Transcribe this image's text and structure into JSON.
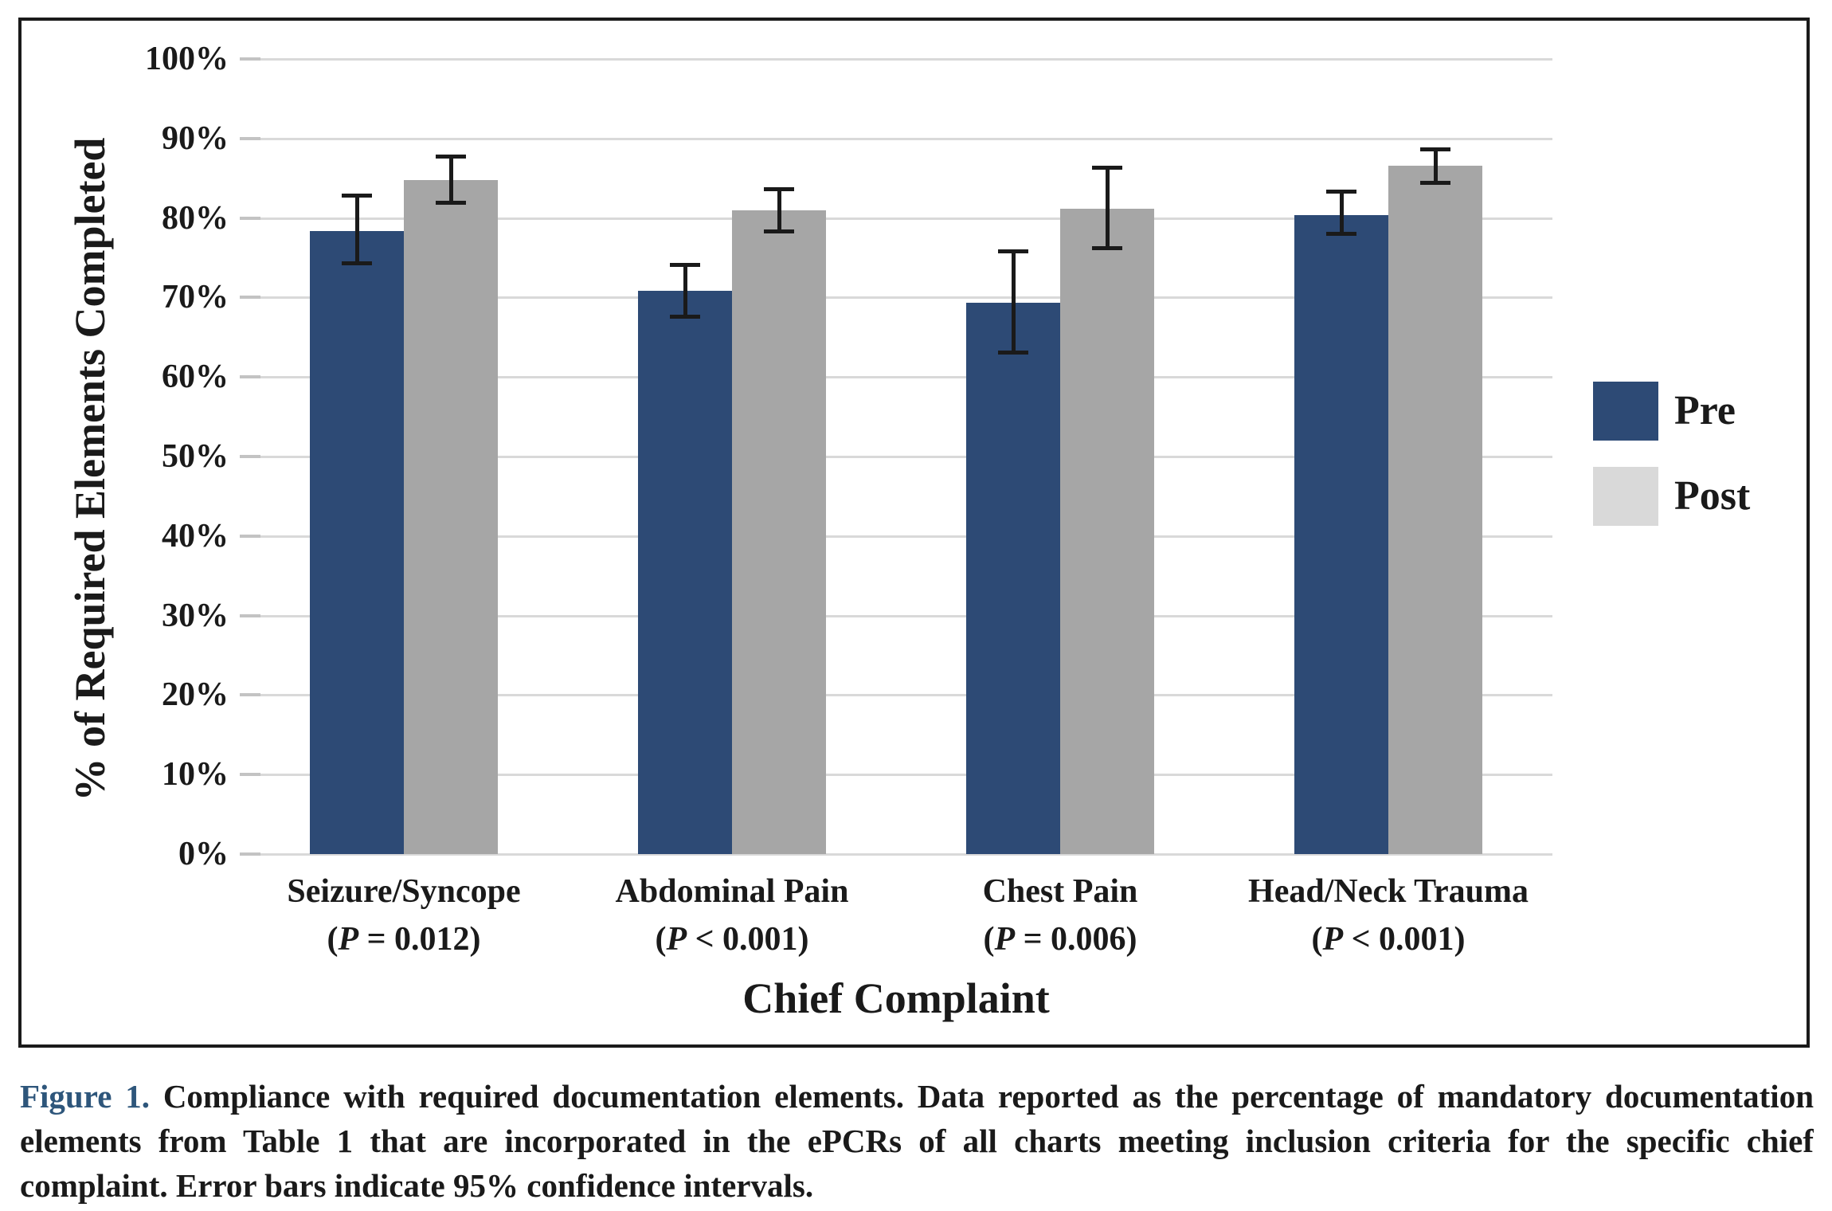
{
  "figure": {
    "background": "#ffffff",
    "border_color": "#1a1a1a"
  },
  "chart": {
    "y_axis_title": "% of Required Elements Completed",
    "x_axis_title": "Chief Complaint",
    "y_ticks": [
      {
        "label": "100%",
        "value": 100
      },
      {
        "label": "90%",
        "value": 90
      },
      {
        "label": "80%",
        "value": 80
      },
      {
        "label": "70%",
        "value": 70
      },
      {
        "label": "60%",
        "value": 60
      },
      {
        "label": "50%",
        "value": 50
      },
      {
        "label": "40%",
        "value": 40
      },
      {
        "label": "30%",
        "value": 30
      },
      {
        "label": "20%",
        "value": 20
      },
      {
        "label": "10%",
        "value": 10
      },
      {
        "label": "0%",
        "value": 0
      }
    ],
    "legend": [
      {
        "label": "Pre",
        "color": "#2d4a75"
      },
      {
        "label": "Post",
        "color": "#d9d9d9"
      }
    ],
    "colors": {
      "pre_bar": "#2d4a75",
      "post_bar": "#a6a6a6",
      "gridline": "#d9d9d9",
      "error_bar": "#1a1a1a"
    }
  },
  "chart_data": {
    "type": "bar",
    "categories": [
      "Seizure/Syncope",
      "Abdominal Pain",
      "Chest Pain",
      "Head/Neck Trauma"
    ],
    "p_labels": [
      "(P = 0.012)",
      "(P < 0.001)",
      "(P = 0.006)",
      "(P < 0.001)"
    ],
    "series": [
      {
        "name": "Pre",
        "values": [
          78.4,
          70.8,
          69.3,
          80.4
        ],
        "ci_low": [
          74.2,
          67.5,
          63.0,
          78.0
        ],
        "ci_high": [
          82.9,
          74.1,
          75.9,
          83.4
        ]
      },
      {
        "name": "Post",
        "values": [
          84.8,
          81.0,
          81.2,
          86.6
        ],
        "ci_low": [
          81.9,
          78.3,
          76.2,
          84.4
        ],
        "ci_high": [
          87.8,
          83.7,
          86.4,
          88.7
        ]
      }
    ],
    "xlabel": "Chief Complaint",
    "ylabel": "% of Required Elements Completed",
    "ylim": [
      0,
      100
    ],
    "grid": true,
    "legend_position": "right",
    "error_bars": "95% confidence intervals"
  },
  "caption": {
    "label": "Figure 1.",
    "label_color": "#2e567b",
    "lines": [
      "Compliance with required documentation elements. Data reported as the percentage of mandatory documentation",
      "elements from Table 1 that are incorporated in the ePCRs of all charts meeting inclusion criteria for the specific chief",
      "complaint. Error bars indicate 95% confidence intervals."
    ]
  }
}
